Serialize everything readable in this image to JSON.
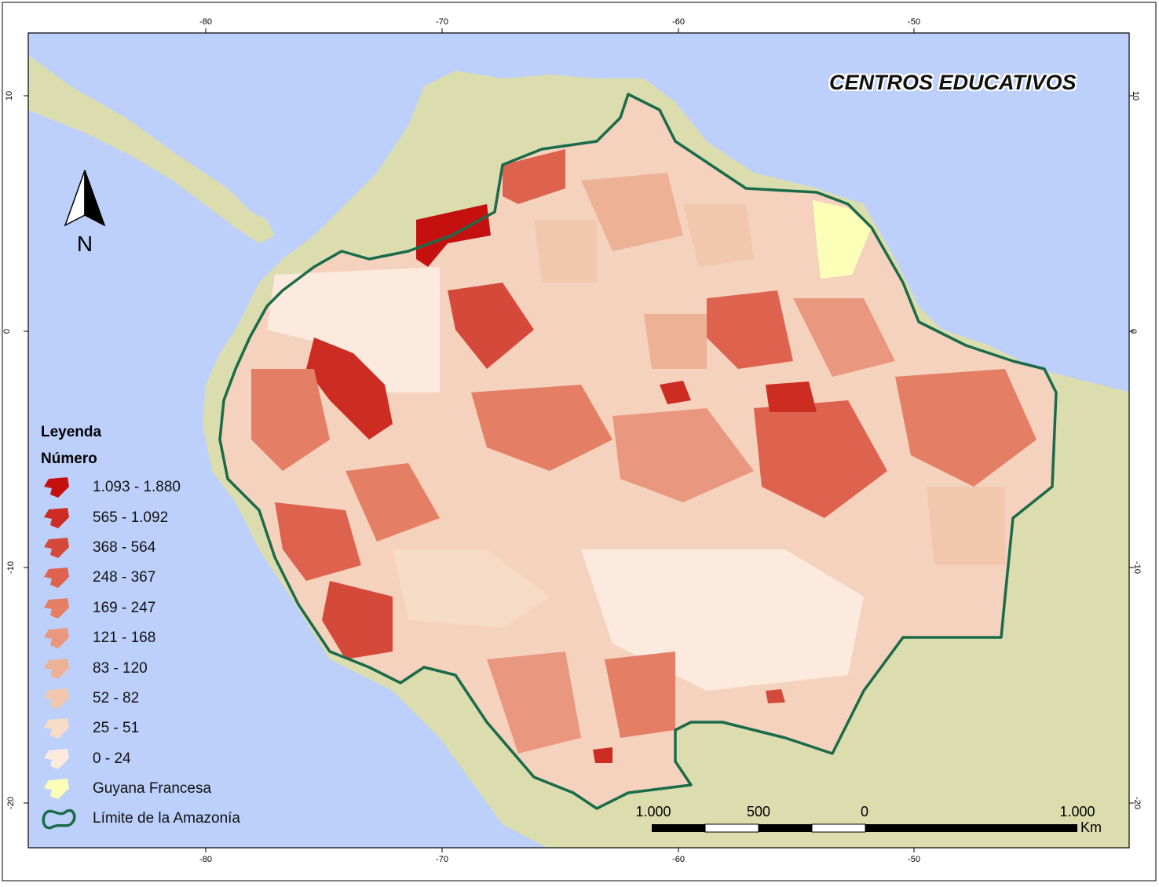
{
  "map": {
    "title": "CENTROS EDUCATIVOS",
    "north_label": "N",
    "colors": {
      "ocean": "#bdd0fb",
      "land": "#dcddae",
      "boundary": "#1a6b4a",
      "guyana": "#fbffb8"
    },
    "ticks": {
      "top": [
        "-80",
        "-70",
        "-60",
        "-50"
      ],
      "bottom": [
        "-80",
        "-70",
        "-60",
        "-50"
      ],
      "left": [
        "10",
        "0",
        "-10",
        "-20"
      ],
      "right": [
        "10",
        "0",
        "-10",
        "-20"
      ]
    }
  },
  "legend": {
    "title": "Leyenda",
    "subtitle": "Número",
    "items": [
      {
        "label": "1.093 - 1.880",
        "color": "#c4110f"
      },
      {
        "label": "565 - 1.092",
        "color": "#cc2c22"
      },
      {
        "label": "368 - 564",
        "color": "#d5493a"
      },
      {
        "label": "248 - 367",
        "color": "#dd634f"
      },
      {
        "label": "169 - 247",
        "color": "#e47e65"
      },
      {
        "label": "121 - 168",
        "color": "#e9987f"
      },
      {
        "label": "83 - 120",
        "color": "#edb195"
      },
      {
        "label": "52 - 82",
        "color": "#f1c8ae"
      },
      {
        "label": "25 - 51",
        "color": "#f6dbc7"
      },
      {
        "label": "0 - 24",
        "color": "#fbeadd"
      },
      {
        "label": "Guyana Francesa",
        "color": "#fbffb8"
      },
      {
        "label": "Límite de la Amazonía",
        "color": "#1a6b4a"
      }
    ]
  },
  "scalebar": {
    "labels": [
      "1.000",
      "500",
      "0",
      "1.000"
    ],
    "unit": "Km"
  }
}
